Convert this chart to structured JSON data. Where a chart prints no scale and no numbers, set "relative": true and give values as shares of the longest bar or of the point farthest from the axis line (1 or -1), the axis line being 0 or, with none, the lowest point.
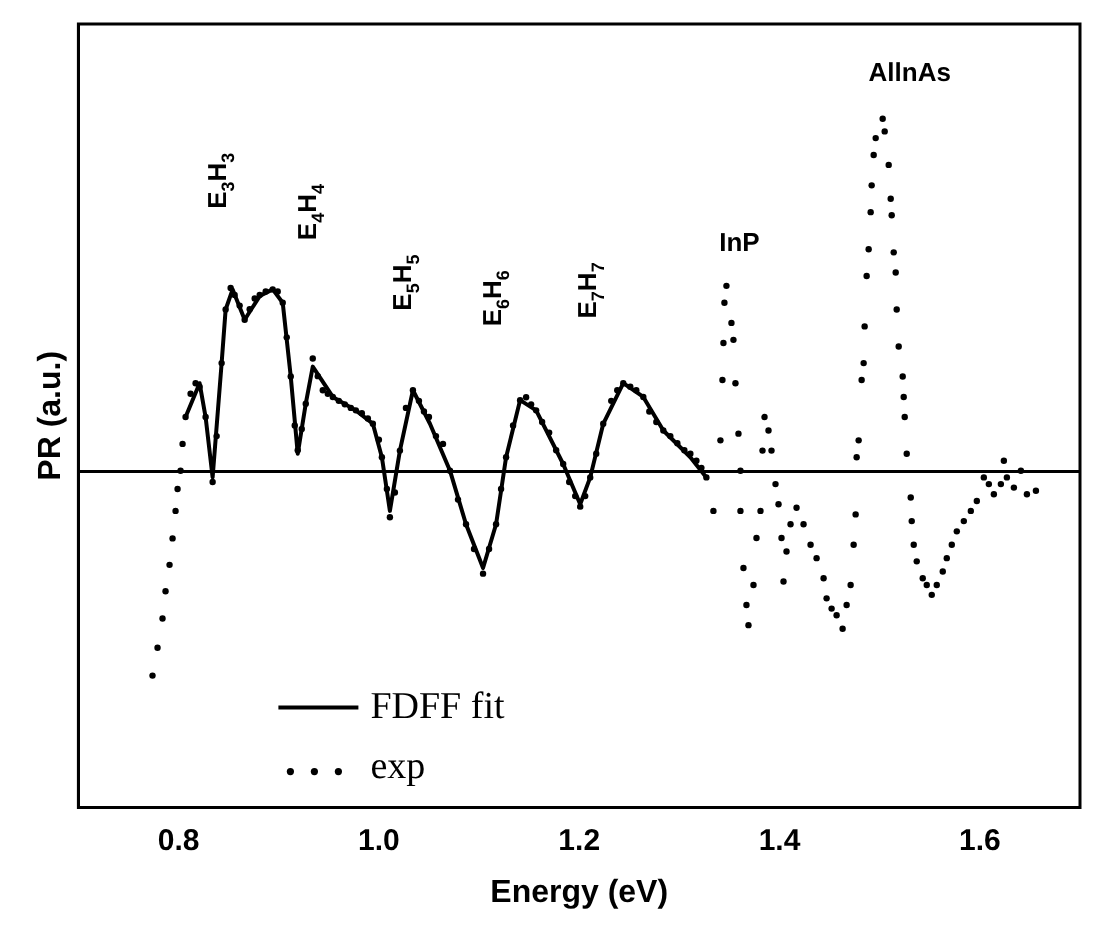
{
  "chart_data": {
    "type": "scatter",
    "xlabel": "Energy (eV)",
    "ylabel": "PR (a.u.)",
    "relative": true,
    "xlim": [
      0.7,
      1.7
    ],
    "xticks": [
      0.8,
      {
        "value": 1,
        "label": "1.0"
      },
      1.2,
      1.4,
      1.6
    ],
    "legend": "bottom left",
    "grid": false,
    "ref_lines": [
      {
        "axis": "y",
        "value": 0,
        "color": "#000000"
      }
    ],
    "annotations": [
      "E$_{3}$H$_{3}$",
      "E$_{4}$H$_{4}$",
      "E$_{5}$H$_{5}$",
      "E$_{6}$H$_{6}$",
      "E$_{7}$H$_{7}$",
      "InP",
      "AllnAs"
    ],
    "series": [
      {
        "name": "FDFF fit",
        "type": "line",
        "color": "#000000",
        "line_style": "solid",
        "marker": "none",
        "x": [
          0.807,
          0.821,
          0.827,
          0.834,
          0.843,
          0.847,
          0.854,
          0.866,
          0.881,
          0.894,
          0.904,
          0.912,
          0.919,
          0.927,
          0.934,
          0.954,
          0.977,
          0.994,
          1.003,
          1.011,
          1.021,
          1.034,
          1.051,
          1.071,
          1.087,
          1.104,
          1.117,
          1.127,
          1.141,
          1.157,
          1.184,
          1.201,
          1.211,
          1.224,
          1.244,
          1.264,
          1.284,
          1.311,
          1.327
        ],
        "values": [
          0.154,
          0.25,
          0.154,
          -0.017,
          0.307,
          0.459,
          0.516,
          0.43,
          0.497,
          0.516,
          0.478,
          0.269,
          0.05,
          0.192,
          0.297,
          0.211,
          0.173,
          0.135,
          0.04,
          -0.112,
          0.059,
          0.23,
          0.135,
          0.002,
          -0.15,
          -0.274,
          -0.15,
          0.04,
          0.202,
          0.173,
          0.021,
          -0.093,
          -0.017,
          0.135,
          0.25,
          0.211,
          0.116,
          0.04,
          -0.017
        ]
      },
      {
        "name": "exp",
        "type": "scatter",
        "color": "#000000",
        "marker": "circle",
        "x": [
          0.774,
          0.779,
          0.784,
          0.787,
          0.791,
          0.794,
          0.797,
          0.799,
          0.802,
          0.804,
          0.807,
          0.812,
          0.817,
          0.821,
          0.827,
          0.834,
          0.838,
          0.843,
          0.847,
          0.852,
          0.856,
          0.861,
          0.866,
          0.871,
          0.876,
          0.881,
          0.887,
          0.894,
          0.899,
          0.904,
          0.908,
          0.912,
          0.916,
          0.919,
          0.923,
          0.927,
          0.934,
          0.939,
          0.944,
          0.949,
          0.954,
          0.96,
          0.966,
          0.972,
          0.977,
          0.983,
          0.989,
          0.994,
          1.0,
          1.003,
          1.008,
          1.011,
          1.016,
          1.021,
          1.027,
          1.034,
          1.04,
          1.045,
          1.05,
          1.057,
          1.064,
          1.071,
          1.079,
          1.087,
          1.095,
          1.104,
          1.11,
          1.117,
          1.122,
          1.127,
          1.134,
          1.141,
          1.147,
          1.152,
          1.157,
          1.163,
          1.17,
          1.177,
          1.184,
          1.19,
          1.196,
          1.201,
          1.206,
          1.211,
          1.217,
          1.224,
          1.232,
          1.238,
          1.244,
          1.251,
          1.257,
          1.264,
          1.27,
          1.277,
          1.284,
          1.291,
          1.298,
          1.305,
          1.311,
          1.317,
          1.322,
          1.327,
          1.334,
          1.341,
          1.343,
          1.344,
          1.345,
          1.347,
          1.352,
          1.354,
          1.356,
          1.359,
          1.361,
          1.361,
          1.364,
          1.367,
          1.369,
          1.374,
          1.377,
          1.381,
          1.383,
          1.385,
          1.389,
          1.392,
          1.396,
          1.399,
          1.402,
          1.404,
          1.407,
          1.411,
          1.417,
          1.424,
          1.431,
          1.437,
          1.444,
          1.447,
          1.452,
          1.457,
          1.463,
          1.467,
          1.471,
          1.474,
          1.476,
          1.477,
          1.479,
          1.482,
          1.484,
          1.485,
          1.487,
          1.489,
          1.491,
          1.492,
          1.494,
          1.496,
          1.503,
          1.505,
          1.509,
          1.511,
          1.512,
          1.514,
          1.516,
          1.517,
          1.519,
          1.523,
          1.524,
          1.525,
          1.527,
          1.531,
          1.532,
          1.534,
          1.537,
          1.543,
          1.547,
          1.552,
          1.557,
          1.563,
          1.567,
          1.572,
          1.577,
          1.584,
          1.591,
          1.597,
          1.604,
          1.609,
          1.614,
          1.621,
          1.624,
          1.627,
          1.634,
          1.641,
          1.647,
          1.656
        ],
        "values": [
          -0.579,
          -0.5,
          -0.417,
          -0.34,
          -0.265,
          -0.19,
          -0.112,
          -0.05,
          0.002,
          0.078,
          0.154,
          0.22,
          0.25,
          0.24,
          0.154,
          -0.03,
          0.1,
          0.307,
          0.459,
          0.52,
          0.5,
          0.47,
          0.43,
          0.46,
          0.49,
          0.5,
          0.51,
          0.516,
          0.51,
          0.478,
          0.38,
          0.269,
          0.13,
          0.06,
          0.12,
          0.192,
          0.32,
          0.27,
          0.23,
          0.22,
          0.211,
          0.2,
          0.19,
          0.18,
          0.173,
          0.165,
          0.15,
          0.135,
          0.09,
          0.04,
          -0.05,
          -0.13,
          -0.06,
          0.059,
          0.18,
          0.23,
          0.2,
          0.17,
          0.154,
          0.1,
          0.078,
          0.002,
          -0.08,
          -0.15,
          -0.22,
          -0.29,
          -0.22,
          -0.15,
          -0.05,
          0.04,
          0.13,
          0.202,
          0.21,
          0.19,
          0.173,
          0.14,
          0.11,
          0.06,
          0.021,
          -0.03,
          -0.07,
          -0.1,
          -0.07,
          -0.017,
          0.05,
          0.135,
          0.2,
          0.23,
          0.25,
          0.24,
          0.23,
          0.211,
          0.17,
          0.14,
          0.116,
          0.1,
          0.08,
          0.06,
          0.05,
          0.03,
          0.01,
          -0.017,
          -0.112,
          0.088,
          0.259,
          0.364,
          0.478,
          0.526,
          0.421,
          0.373,
          0.25,
          0.107,
          0.002,
          -0.112,
          -0.274,
          -0.379,
          -0.436,
          -0.322,
          -0.189,
          -0.112,
          0.059,
          0.154,
          0.116,
          0.059,
          -0.036,
          -0.093,
          -0.189,
          -0.312,
          -0.227,
          -0.15,
          -0.103,
          -0.15,
          -0.208,
          -0.246,
          -0.303,
          -0.36,
          -0.389,
          -0.408,
          -0.446,
          -0.379,
          -0.322,
          -0.208,
          -0.122,
          0.04,
          0.088,
          0.259,
          0.307,
          0.411,
          0.554,
          0.63,
          0.735,
          0.811,
          0.897,
          0.945,
          1.0,
          0.964,
          0.869,
          0.773,
          0.726,
          0.621,
          0.564,
          0.459,
          0.354,
          0.269,
          0.211,
          0.154,
          0.05,
          -0.074,
          -0.141,
          -0.208,
          -0.255,
          -0.303,
          -0.322,
          -0.35,
          -0.322,
          -0.284,
          -0.246,
          -0.208,
          -0.17,
          -0.141,
          -0.112,
          -0.084,
          -0.017,
          -0.036,
          -0.065,
          -0.036,
          0.03,
          -0.017,
          -0.046,
          0.002,
          -0.065,
          -0.055
        ]
      }
    ]
  }
}
